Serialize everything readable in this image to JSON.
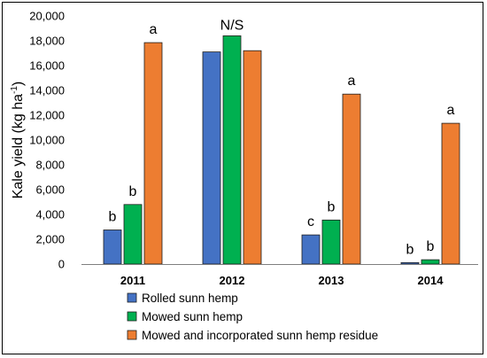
{
  "chart_data": {
    "type": "bar",
    "title": "",
    "xlabel": "",
    "ylabel": "Kale yield (kg ha",
    "ylabel_sup": "-1",
    "ylabel_close": ")",
    "ylim": [
      0,
      20000
    ],
    "yticks": [
      0,
      2000,
      4000,
      6000,
      8000,
      10000,
      12000,
      14000,
      16000,
      18000,
      20000
    ],
    "ytick_labels": [
      "0",
      "2,000",
      "4,000",
      "6,000",
      "8,000",
      "10,000",
      "12,000",
      "14,000",
      "16,000",
      "18,000",
      "20,000"
    ],
    "grid": false,
    "legend_position": "bottom",
    "categories": [
      "2011",
      "2012",
      "2013",
      "2014"
    ],
    "series": [
      {
        "name": "Rolled sunn hemp",
        "color": "#4472c4",
        "values": [
          2750,
          17100,
          2350,
          120
        ],
        "labels": [
          "b",
          "",
          "c",
          "b"
        ]
      },
      {
        "name": "Mowed sunn hemp",
        "color": "#00b050",
        "values": [
          4800,
          18400,
          3550,
          350
        ],
        "labels": [
          "b",
          "",
          "b",
          "b"
        ]
      },
      {
        "name": "Mowed and incorporated sunn hemp residue",
        "color": "#ed7d31",
        "values": [
          17850,
          17200,
          13700,
          11350
        ],
        "labels": [
          "a",
          "",
          "a",
          "a"
        ]
      }
    ],
    "group_annotations": [
      "",
      "N/S",
      "",
      ""
    ]
  }
}
